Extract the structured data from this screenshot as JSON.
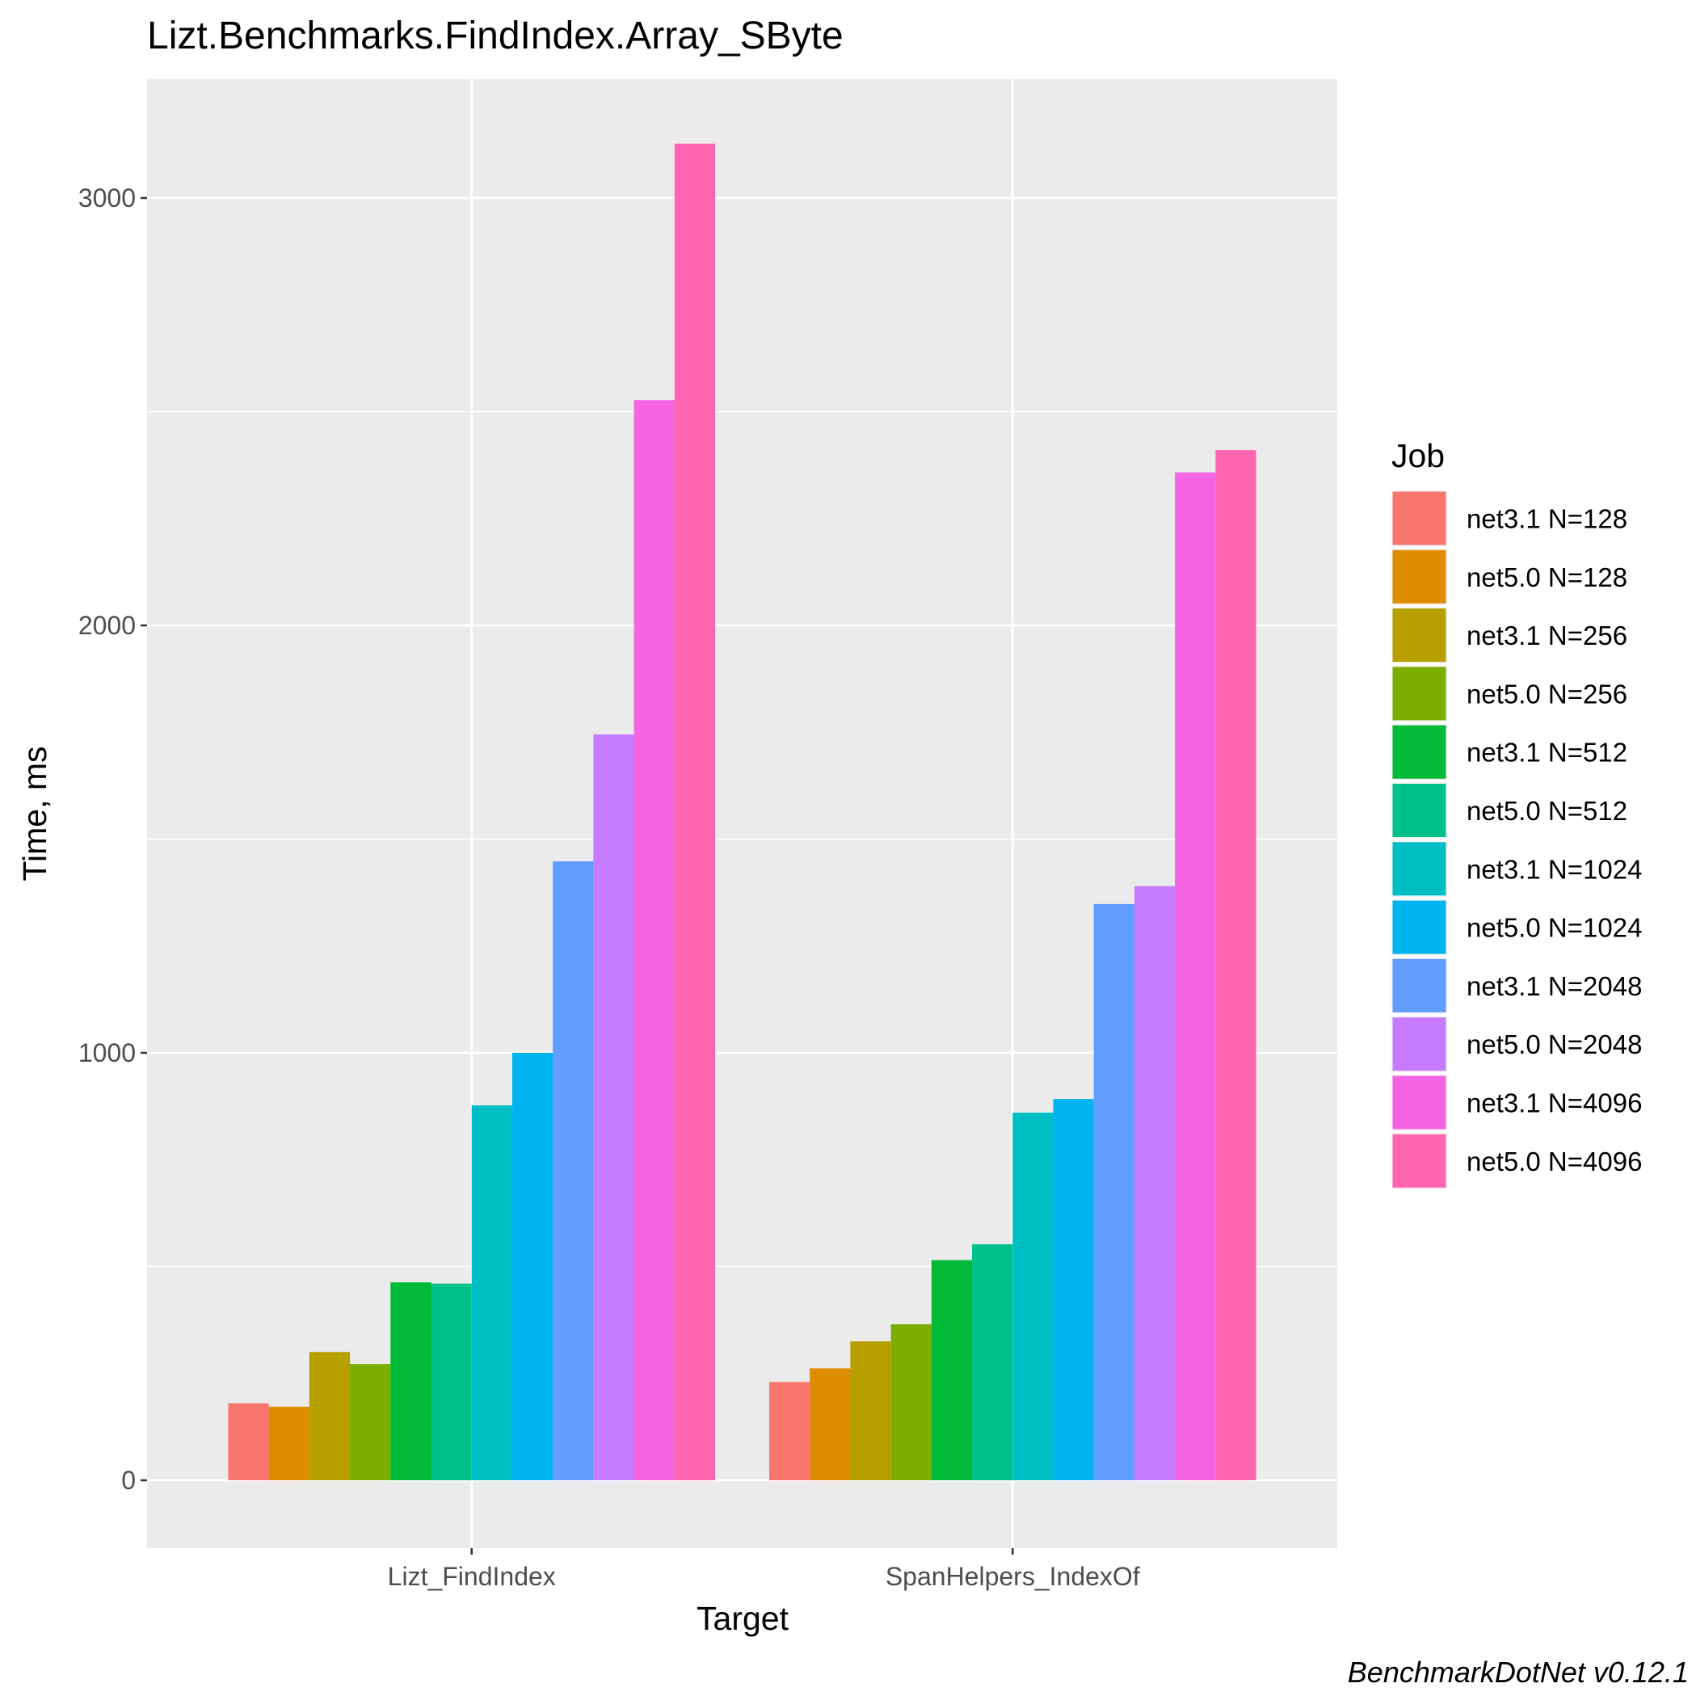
{
  "chart_data": {
    "type": "bar",
    "title": "Lizt.Benchmarks.FindIndex.Array_SByte",
    "xlabel": "Target",
    "ylabel": "Time, ms",
    "caption": "BenchmarkDotNet v0.12.1",
    "legend_title": "Job",
    "legend_position": "right",
    "grid": true,
    "ylim": [
      -150,
      3450
    ],
    "yticks": [
      0,
      1000,
      2000,
      3000
    ],
    "ytick_labels": [
      "0",
      "1000",
      "2000",
      "3000"
    ],
    "categories": [
      "Lizt_FindIndex",
      "SpanHelpers_IndexOf"
    ],
    "series": [
      {
        "name": "net3.1 N=128",
        "color": "#F8766D",
        "values": [
          180,
          230
        ]
      },
      {
        "name": "net5.0 N=128",
        "color": "#DE8C00",
        "values": [
          172,
          262
        ]
      },
      {
        "name": "net3.1 N=256",
        "color": "#B79F00",
        "values": [
          300,
          325
        ]
      },
      {
        "name": "net5.0 N=256",
        "color": "#7CAE00",
        "values": [
          272,
          365
        ]
      },
      {
        "name": "net3.1 N=512",
        "color": "#00BA38",
        "values": [
          463,
          515
        ]
      },
      {
        "name": "net5.0 N=512",
        "color": "#00C08B",
        "values": [
          460,
          552
        ]
      },
      {
        "name": "net3.1 N=1024",
        "color": "#00BFC4",
        "values": [
          877,
          860
        ]
      },
      {
        "name": "net5.0 N=1024",
        "color": "#00B4F0",
        "values": [
          1000,
          892
        ]
      },
      {
        "name": "net3.1 N=2048",
        "color": "#619CFF",
        "values": [
          1448,
          1348
        ]
      },
      {
        "name": "net5.0 N=2048",
        "color": "#C77CFF",
        "values": [
          1745,
          1390
        ]
      },
      {
        "name": "net3.1 N=4096",
        "color": "#F564E3",
        "values": [
          2527,
          2358
        ]
      },
      {
        "name": "net5.0 N=4096",
        "color": "#FF64B0",
        "values": [
          3127,
          2410
        ]
      }
    ]
  }
}
